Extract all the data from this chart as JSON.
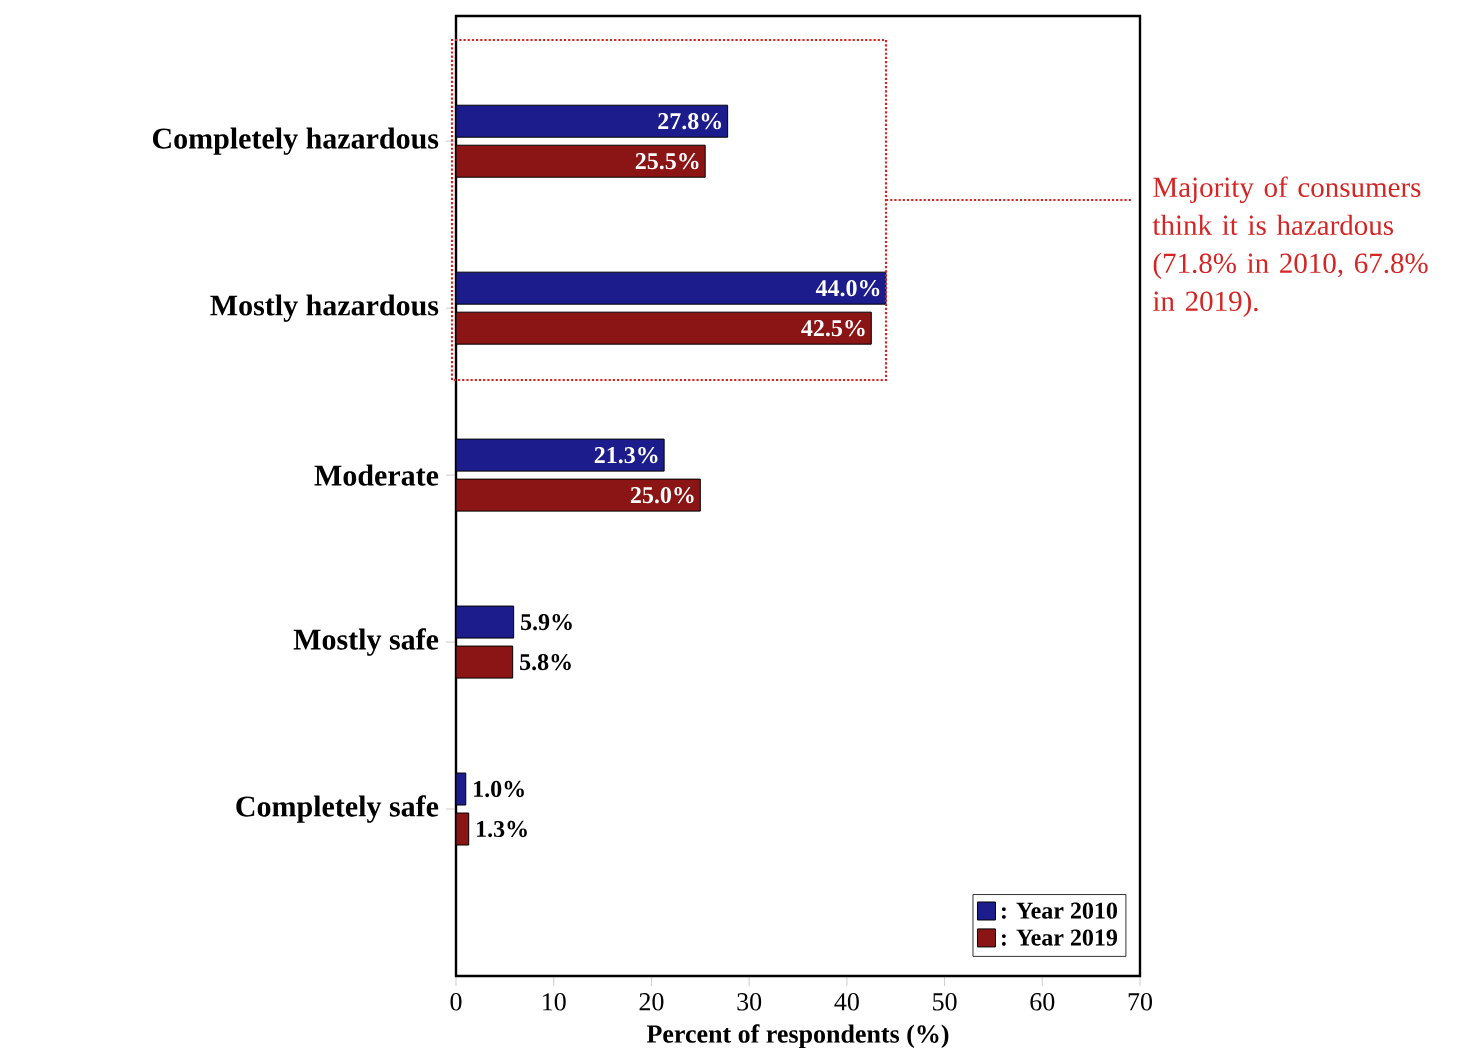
{
  "chart_data": {
    "type": "bar",
    "orientation": "horizontal",
    "categories": [
      "Completely hazardous",
      "Mostly hazardous",
      "Moderate",
      "Mostly safe",
      "Completely safe"
    ],
    "series": [
      {
        "name": ": Year 2010",
        "color": "#1c1c8c",
        "values": [
          27.8,
          44.0,
          21.3,
          5.9,
          1.0
        ],
        "value_labels": [
          "27.8%",
          "44.0%",
          "21.3%",
          "5.9%",
          "1.0%"
        ]
      },
      {
        "name": ": Year 2019",
        "color": "#8b1515",
        "values": [
          25.5,
          42.5,
          25.0,
          5.8,
          1.3
        ],
        "value_labels": [
          "25.5%",
          "42.5%",
          "25.0%",
          "5.8%",
          "1.3%"
        ]
      }
    ],
    "xlabel": "Percent of respondents (%)",
    "xlim": [
      0,
      70
    ],
    "xticks": [
      0,
      10,
      20,
      30,
      40,
      50,
      60,
      70
    ],
    "legend": "bottom right",
    "grid": false,
    "annotations": [
      "Majority of consumers think it is hazardous (71.8% in 2010, 67.8% in 2019)."
    ]
  }
}
